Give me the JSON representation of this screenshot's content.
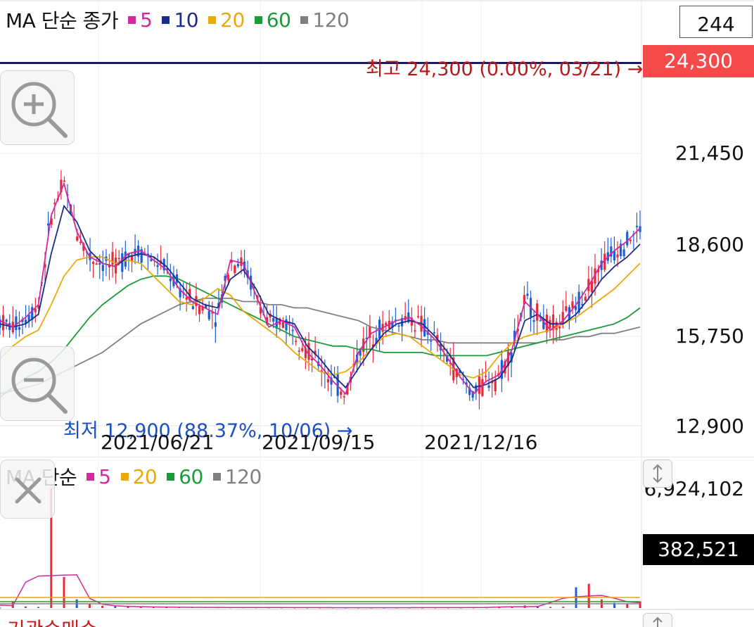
{
  "price_panel": {
    "legend": {
      "title": "MA 단순 종가",
      "items": [
        {
          "label": "5",
          "color": "#d4289e"
        },
        {
          "label": "10",
          "color": "#1a2c8c"
        },
        {
          "label": "20",
          "color": "#e8a90a"
        },
        {
          "label": "60",
          "color": "#1a9b3a"
        },
        {
          "label": "120",
          "color": "#808080"
        }
      ]
    },
    "period_box": "244",
    "high_note": "최고 24,300 (0.00%, 03/21) →",
    "high_price_tag": "24,300",
    "low_note": "최저 12,900 (88.37%, 10/06) →",
    "y_ticks": [
      "21,450",
      "18,600",
      "15,750",
      "12,900"
    ],
    "x_ticks": [
      "2021/06/21",
      "2021/09/15",
      "2021/12/16"
    ],
    "zoom_in": "zoom-in-icon",
    "zoom_out": "zoom-out-icon"
  },
  "volume_panel": {
    "legend": {
      "title": "MA 단순",
      "items": [
        {
          "label": "5",
          "color": "#d4289e"
        },
        {
          "label": "20",
          "color": "#e8a90a"
        },
        {
          "label": "60",
          "color": "#1a9b3a"
        },
        {
          "label": "120",
          "color": "#808080"
        }
      ]
    },
    "max_label": "6,924,102",
    "current_tag": "382,521",
    "close": "close-icon",
    "resize": "resize-vertical-icon"
  },
  "bottom_panel": {
    "title": "기관순매수"
  },
  "colors": {
    "up": "#e8293b",
    "down": "#1a5fd6",
    "high_line": "#1a1a5e",
    "high_tag_bg": "#f44a4a",
    "high_note": "#b81a1a",
    "low_note": "#1b4fc4",
    "current_tag_bg": "#000000"
  },
  "chart_data": [
    {
      "type": "line",
      "title": "",
      "y_ticks": [
        21450,
        18600,
        15750,
        12900
      ],
      "ylim": [
        12900,
        24300
      ],
      "x_ticks": [
        "2021/06/21",
        "2021/09/15",
        "2021/12/16"
      ],
      "annotations": [
        {
          "label": "최고 24,300 (0.00%, 03/21)",
          "value": 24300
        },
        {
          "label": "최저 12,900 (88.37%, 10/06)",
          "value": 12900
        }
      ],
      "series": [
        {
          "name": "5",
          "color": "#d4289e",
          "values": [
            16200,
            16000,
            16300,
            16700,
            19500,
            20500,
            19000,
            18200,
            18000,
            17900,
            18300,
            18400,
            18100,
            17800,
            17200,
            16800,
            16600,
            16400,
            18100,
            18000,
            17000,
            16000,
            16200,
            16000,
            15200,
            14800,
            14300,
            13900,
            15200,
            15800,
            16000,
            16200,
            16300,
            16000,
            15600,
            15000,
            14400,
            13900,
            14300,
            14500,
            15300,
            16800,
            16400,
            15900,
            16200,
            16700,
            17300,
            18000,
            18400,
            18700,
            19100
          ]
        },
        {
          "name": "10",
          "color": "#1a2c8c",
          "values": [
            16100,
            16000,
            16100,
            16400,
            18300,
            19800,
            19300,
            18400,
            18000,
            17900,
            18200,
            18300,
            18200,
            17900,
            17400,
            16900,
            16700,
            16600,
            17500,
            17800,
            17200,
            16400,
            16200,
            16100,
            15400,
            15000,
            14500,
            14100,
            14700,
            15300,
            15800,
            16100,
            16200,
            16100,
            15700,
            15200,
            14600,
            14100,
            14200,
            14400,
            15000,
            16200,
            16400,
            16100,
            16100,
            16400,
            16900,
            17500,
            17900,
            18200,
            18600
          ]
        },
        {
          "name": "20",
          "color": "#e8a90a",
          "values": [
            15000,
            15400,
            15700,
            15900,
            16700,
            17600,
            18100,
            18200,
            18200,
            18000,
            18100,
            18000,
            17600,
            17200,
            16800,
            16700,
            16900,
            17200,
            17000,
            16500,
            16200,
            15900,
            15600,
            15200,
            14900,
            14600,
            14500,
            14600,
            14900,
            15300,
            15700,
            15800,
            15700,
            15400,
            15100,
            14800,
            14500,
            14400,
            14600,
            15100,
            15500,
            15700,
            15800,
            15900,
            16100,
            16300,
            16600,
            16900,
            17200,
            17600,
            18000
          ]
        },
        {
          "name": "60",
          "color": "#1a9b3a",
          "values": [
            13800,
            14100,
            14400,
            14600,
            14900,
            15300,
            15800,
            16300,
            16700,
            17000,
            17300,
            17500,
            17600,
            17600,
            17500,
            17300,
            17100,
            16900,
            16700,
            16500,
            16300,
            16100,
            15900,
            15700,
            15600,
            15500,
            15400,
            15400,
            15300,
            15300,
            15200,
            15200,
            15200,
            15200,
            15100,
            15100,
            15100,
            15100,
            15100,
            15200,
            15300,
            15400,
            15500,
            15600,
            15700,
            15800,
            15900,
            16000,
            16100,
            16300,
            16600
          ]
        },
        {
          "name": "120",
          "color": "#808080",
          "values": [
            13900,
            14000,
            14100,
            14200,
            14400,
            14600,
            14800,
            15000,
            15200,
            15500,
            15800,
            16100,
            16300,
            16500,
            16700,
            16800,
            16900,
            16900,
            16900,
            16800,
            16800,
            16700,
            16700,
            16600,
            16600,
            16500,
            16400,
            16300,
            16200,
            16000,
            15900,
            15800,
            15700,
            15600,
            15600,
            15500,
            15500,
            15500,
            15500,
            15500,
            15500,
            15500,
            15500,
            15600,
            15600,
            15700,
            15700,
            15800,
            15800,
            15900,
            16000
          ]
        }
      ]
    },
    {
      "type": "bar",
      "title": "",
      "ylim": [
        0,
        6924102
      ],
      "current": 382521,
      "values": [
        20000,
        380000,
        90000,
        60000,
        6924102,
        1800000,
        500000,
        240000,
        130000,
        110000,
        90000,
        70000,
        60000,
        50000,
        45000,
        40000,
        38000,
        35000,
        33000,
        32000,
        30000,
        28000,
        26000,
        25000,
        24000,
        23000,
        22000,
        21000,
        20000,
        19000,
        20000,
        21000,
        22000,
        23000,
        24000,
        25000,
        26000,
        27000,
        28000,
        30000,
        60000,
        150000,
        90000,
        60000,
        75000,
        1200000,
        1400000,
        500000,
        300000,
        250000,
        382521
      ]
    }
  ]
}
